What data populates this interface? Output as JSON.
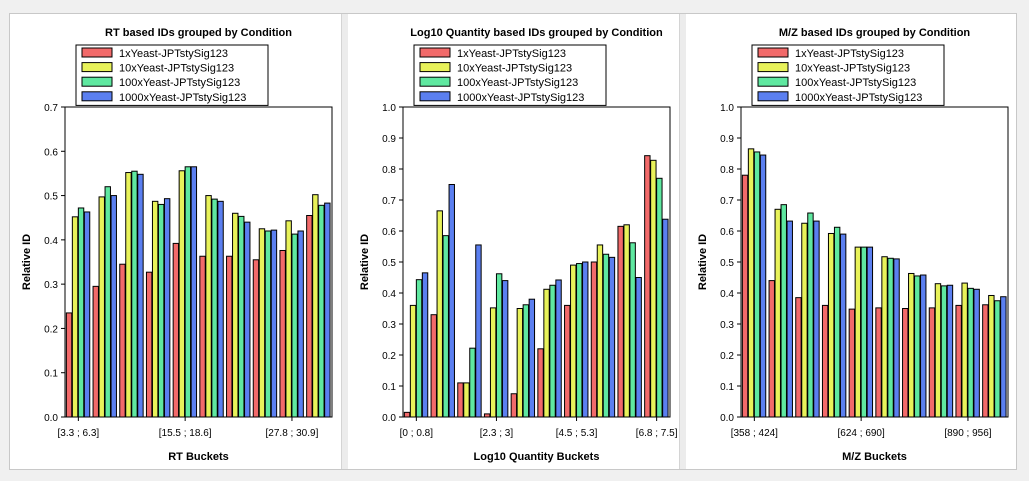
{
  "colors": {
    "series": [
      "#f26a6a",
      "#e8f25a",
      "#5fe8a0",
      "#5b7ff0"
    ],
    "axis": "#000000"
  },
  "legend_entries": [
    "1xYeast-JPTstySig123",
    "10xYeast-JPTstySig123",
    "100xYeast-JPTstySig123",
    "1000xYeast-JPTstySig123"
  ],
  "chart_data": [
    {
      "type": "bar",
      "title": "RT based IDs grouped by Condition",
      "xlabel": "RT Buckets",
      "ylabel": "Relative ID",
      "ylim": [
        0,
        0.7
      ],
      "yticks": [
        "0.0",
        "0.1",
        "0.2",
        "0.3",
        "0.4",
        "0.5",
        "0.6",
        "0.7"
      ],
      "tick_labels": [
        "[3.3 ; 6.3]",
        "[15.5 ; 18.6]",
        "[27.8 ; 30.9]"
      ],
      "tick_groups": [
        0,
        4,
        8
      ],
      "legend": "top-left",
      "grid": false,
      "series": [
        {
          "name": "1xYeast-JPTstySig123",
          "values": [
            0.235,
            0.295,
            0.345,
            0.327,
            0.392,
            0.363,
            0.363,
            0.355,
            0.376,
            0.455
          ]
        },
        {
          "name": "10xYeast-JPTstySig123",
          "values": [
            0.452,
            0.497,
            0.552,
            0.487,
            0.556,
            0.5,
            0.46,
            0.425,
            0.443,
            0.502
          ]
        },
        {
          "name": "100xYeast-JPTstySig123",
          "values": [
            0.472,
            0.52,
            0.555,
            0.48,
            0.565,
            0.492,
            0.453,
            0.42,
            0.413,
            0.478
          ]
        },
        {
          "name": "1000xYeast-JPTstySig123",
          "values": [
            0.463,
            0.5,
            0.548,
            0.493,
            0.565,
            0.487,
            0.44,
            0.422,
            0.42,
            0.483
          ]
        }
      ]
    },
    {
      "type": "bar",
      "title": "Log10 Quantity based IDs grouped by Condition",
      "xlabel": "Log10 Quantity Buckets",
      "ylabel": "Relative ID",
      "ylim": [
        0,
        1.0
      ],
      "yticks": [
        "0.0",
        "0.1",
        "0.2",
        "0.3",
        "0.4",
        "0.5",
        "0.6",
        "0.7",
        "0.8",
        "0.9",
        "1.0"
      ],
      "tick_labels": [
        "[0 ; 0.8]",
        "[2.3 ; 3]",
        "[4.5 ; 5.3]",
        "[6.8 ; 7.5]"
      ],
      "tick_groups": [
        0,
        3,
        6,
        9
      ],
      "legend": "top-left",
      "grid": false,
      "series": [
        {
          "name": "1xYeast-JPTstySig123",
          "values": [
            0.015,
            0.33,
            0.11,
            0.01,
            0.075,
            0.22,
            0.36,
            0.5,
            0.615,
            0.843
          ]
        },
        {
          "name": "10xYeast-JPTstySig123",
          "values": [
            0.36,
            0.665,
            0.11,
            0.352,
            0.35,
            0.412,
            0.49,
            0.555,
            0.62,
            0.828
          ]
        },
        {
          "name": "100xYeast-JPTstySig123",
          "values": [
            0.443,
            0.585,
            0.222,
            0.462,
            0.362,
            0.425,
            0.495,
            0.525,
            0.562,
            0.77
          ]
        },
        {
          "name": "1000xYeast-JPTstySig123",
          "values": [
            0.465,
            0.75,
            0.555,
            0.44,
            0.38,
            0.442,
            0.5,
            0.515,
            0.45,
            0.638
          ]
        }
      ]
    },
    {
      "type": "bar",
      "title": "M/Z based IDs grouped by Condition",
      "xlabel": "M/Z Buckets",
      "ylabel": "Relative ID",
      "ylim": [
        0,
        1.0
      ],
      "yticks": [
        "0.0",
        "0.1",
        "0.2",
        "0.3",
        "0.4",
        "0.5",
        "0.6",
        "0.7",
        "0.8",
        "0.9",
        "1.0"
      ],
      "tick_labels": [
        "[358 ; 424]",
        "[624 ; 690]",
        "[890 ; 956]"
      ],
      "tick_groups": [
        0,
        4,
        8
      ],
      "legend": "top-left",
      "grid": false,
      "series": [
        {
          "name": "1xYeast-JPTstySig123",
          "values": [
            0.78,
            0.44,
            0.385,
            0.36,
            0.348,
            0.352,
            0.35,
            0.352,
            0.36,
            0.362
          ]
        },
        {
          "name": "10xYeast-JPTstySig123",
          "values": [
            0.865,
            0.67,
            0.625,
            0.592,
            0.548,
            0.517,
            0.463,
            0.43,
            0.432,
            0.392
          ]
        },
        {
          "name": "100xYeast-JPTstySig123",
          "values": [
            0.855,
            0.685,
            0.658,
            0.612,
            0.548,
            0.512,
            0.455,
            0.423,
            0.415,
            0.375
          ]
        },
        {
          "name": "1000xYeast-JPTstySig123",
          "values": [
            0.845,
            0.632,
            0.632,
            0.59,
            0.548,
            0.51,
            0.458,
            0.425,
            0.412,
            0.388
          ]
        }
      ]
    }
  ]
}
